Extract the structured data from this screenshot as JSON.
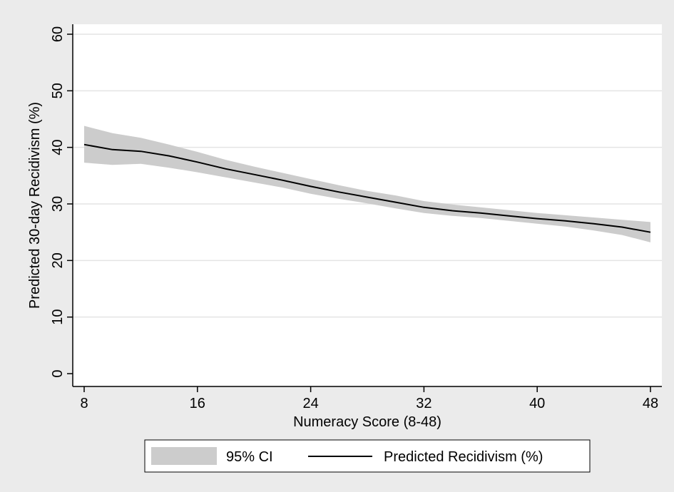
{
  "chart_data": {
    "type": "line",
    "title": "",
    "xlabel": "Numeracy Score (8-48)",
    "ylabel": "Predicted 30-day Recidivism (%)",
    "xlim": [
      8,
      48
    ],
    "ylim": [
      0,
      60
    ],
    "xticks": [
      8,
      16,
      24,
      32,
      40,
      48
    ],
    "yticks": [
      0,
      10,
      20,
      30,
      40,
      50,
      60
    ],
    "grid": true,
    "legend_position": "bottom",
    "series": [
      {
        "name": "Predicted Recidivism (%)",
        "kind": "line",
        "color": "#000000",
        "x": [
          8,
          10,
          12,
          14,
          16,
          18,
          20,
          22,
          24,
          26,
          28,
          30,
          32,
          34,
          36,
          38,
          40,
          42,
          44,
          46,
          48
        ],
        "y": [
          40.5,
          39.6,
          39.3,
          38.5,
          37.4,
          36.2,
          35.2,
          34.2,
          33.1,
          32.1,
          31.2,
          30.3,
          29.4,
          28.8,
          28.4,
          27.9,
          27.4,
          27.0,
          26.5,
          25.9,
          25.0
        ]
      },
      {
        "name": "95% CI",
        "kind": "band",
        "color": "#cccccc",
        "x": [
          8,
          10,
          12,
          14,
          16,
          18,
          20,
          22,
          24,
          26,
          28,
          30,
          32,
          34,
          36,
          38,
          40,
          42,
          44,
          46,
          48
        ],
        "lower": [
          37.3,
          36.9,
          37.1,
          36.4,
          35.6,
          34.7,
          33.8,
          32.9,
          31.8,
          30.9,
          30.1,
          29.2,
          28.4,
          27.9,
          27.5,
          27.0,
          26.5,
          26.0,
          25.3,
          24.5,
          23.2
        ],
        "upper": [
          43.8,
          42.5,
          41.7,
          40.5,
          39.2,
          37.8,
          36.6,
          35.5,
          34.4,
          33.3,
          32.3,
          31.5,
          30.5,
          29.9,
          29.4,
          28.9,
          28.4,
          28.0,
          27.6,
          27.2,
          26.8
        ]
      }
    ],
    "legend": [
      {
        "label": "95% CI",
        "kind": "band"
      },
      {
        "label": "Predicted Recidivism (%)",
        "kind": "line"
      }
    ]
  },
  "colors": {
    "outer_background": "#ebebeb",
    "plot_background": "#ffffff",
    "band": "#cccccc",
    "line": "#000000",
    "grid": "#e4e4e4"
  }
}
